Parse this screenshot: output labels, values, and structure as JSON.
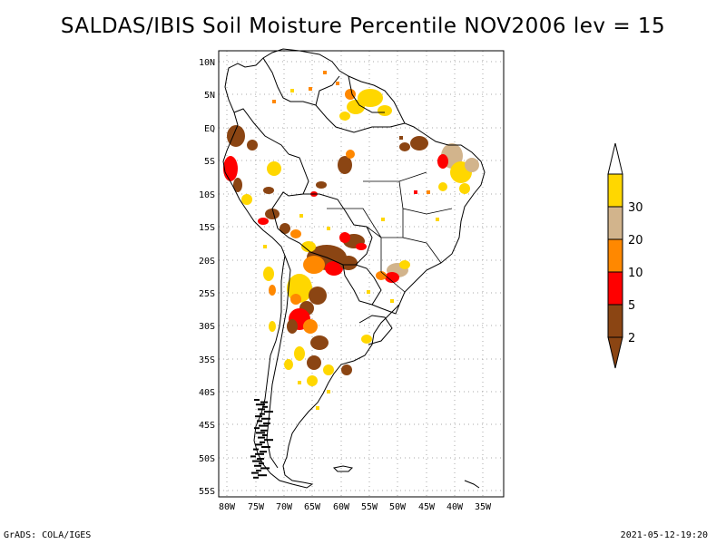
{
  "title": "SALDAS/IBIS Soil Moisture Percentile NOV2006 lev = 15",
  "footer": {
    "left": "GrADS: COLA/IGES",
    "right": "2021-05-12-19:20"
  },
  "map": {
    "lon_range": [
      -80,
      -30
    ],
    "lat_range": [
      -56,
      12
    ],
    "lat_ticks": [
      "10N",
      "5N",
      "EQ",
      "5S",
      "10S",
      "15S",
      "20S",
      "25S",
      "30S",
      "35S",
      "40S",
      "45S",
      "50S",
      "55S"
    ],
    "lon_ticks": [
      "80W",
      "75W",
      "70W",
      "65W",
      "60W",
      "55W",
      "50W",
      "45W",
      "40W",
      "35W"
    ]
  },
  "legend": {
    "categories": [
      {
        "label": "2",
        "color": "#8b4513"
      },
      {
        "label": "5",
        "color": "#ff0000"
      },
      {
        "label": "10",
        "color": "#ff8800"
      },
      {
        "label": "20",
        "color": "#d2b48c"
      },
      {
        "label": "30",
        "color": "#ffd700"
      }
    ],
    "bottom_color": "#8b4513",
    "top_color": "#ffffff"
  },
  "colors": {
    "brown": "#8b4513",
    "red": "#ff0000",
    "orange": "#ff8800",
    "tan": "#d2b48c",
    "yellow": "#ffd700"
  }
}
